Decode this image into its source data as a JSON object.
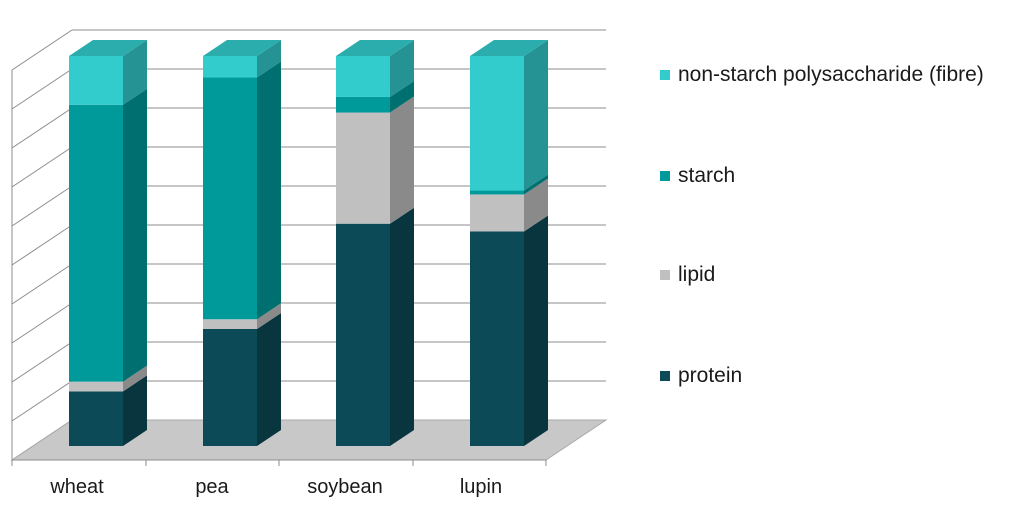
{
  "chart_data": {
    "type": "bar",
    "stacked": true,
    "three_d": true,
    "categories": [
      "wheat",
      "pea",
      "soybean",
      "lupin"
    ],
    "series": [
      {
        "name": "protein",
        "values": [
          14,
          30,
          57,
          55
        ],
        "color": "#0d4a57"
      },
      {
        "name": "lipid",
        "values": [
          2.5,
          2.5,
          28.5,
          9.5
        ],
        "color": "#c0c0c0"
      },
      {
        "name": "starch",
        "values": [
          71,
          62,
          4,
          1
        ],
        "color": "#009a9a"
      },
      {
        "name": "non-starch polysaccharide (fibre)",
        "values": [
          12.5,
          5.5,
          10.5,
          34.5
        ],
        "color": "#33cccc"
      }
    ],
    "ylim": [
      0,
      100
    ],
    "grid": true,
    "legend_position": "right",
    "legend_order": [
      "non-starch polysaccharide (fibre)",
      "starch",
      "lipid",
      "protein"
    ]
  }
}
